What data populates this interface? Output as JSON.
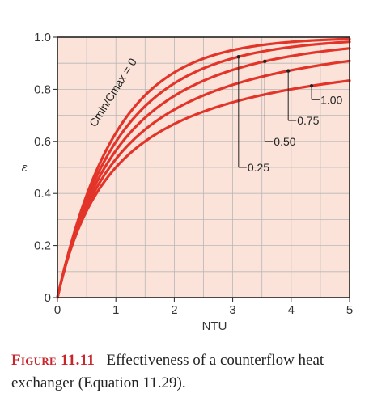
{
  "chart_data": {
    "type": "line",
    "xlabel": "NTU",
    "ylabel": "ε",
    "xlim": [
      0,
      5
    ],
    "ylim": [
      0,
      1.0
    ],
    "xticks": [
      "0",
      "1",
      "2",
      "3",
      "4",
      "5"
    ],
    "yticks": [
      "0",
      "0.2",
      "0.4",
      "0.6",
      "0.8",
      "1.0"
    ],
    "grid": true,
    "background_color": "#fbe3d9",
    "grid_color": "#b8b8b8",
    "line_color": "#e3342a",
    "curve_label": "Cmin/Cmax = 0",
    "series": [
      {
        "name": "0",
        "label": "",
        "cr": 0.0
      },
      {
        "name": "0.25",
        "label": "0.25",
        "cr": 0.25
      },
      {
        "name": "0.50",
        "label": "0.50",
        "cr": 0.5
      },
      {
        "name": "0.75",
        "label": "0.75",
        "cr": 0.75
      },
      {
        "name": "1.00",
        "label": "1.00",
        "cr": 1.0
      }
    ],
    "callouts": [
      {
        "series": "0.25",
        "ntu": 3.1,
        "label_y": 0.5
      },
      {
        "series": "0.50",
        "ntu": 3.55,
        "label_y": 0.6
      },
      {
        "series": "0.75",
        "ntu": 3.95,
        "label_y": 0.68
      },
      {
        "series": "1.00",
        "ntu": 4.35,
        "label_y": 0.76
      }
    ]
  },
  "caption": {
    "label": "Figure 11.11",
    "text": "Effectiveness of a counterflow heat exchanger (Equation 11.29)."
  }
}
